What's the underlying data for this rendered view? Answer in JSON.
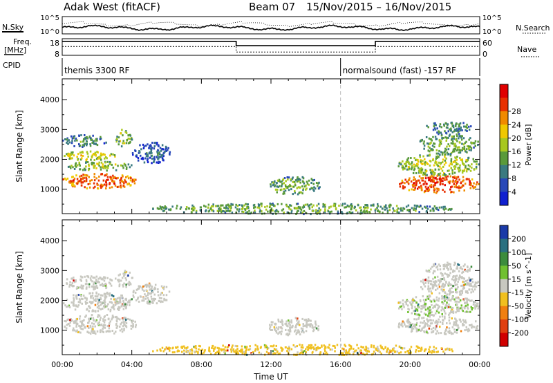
{
  "header": {
    "station": "Adak West (fitACF)",
    "beam": "Beam 07",
    "daterange": "15/Nov/2015 – 16/Nov/2015"
  },
  "top_panels": {
    "nsky_label": "N.Sky",
    "nsky_ticks": [
      "10^5",
      "10^0"
    ],
    "nsearch_label": "N.Search",
    "nsearch_ticks": [
      "10^5",
      "10^0"
    ],
    "freq_label": "Freq.",
    "freq_unit": "[MHz]",
    "freq_ticks": [
      "18",
      "8"
    ],
    "nave_label": "Nave",
    "nave_ticks": [
      "60",
      "0"
    ],
    "cpid_label": "CPID",
    "cpid_segments": [
      {
        "start_hour": 0,
        "text": "themis 3300 RF"
      },
      {
        "start_hour": 16,
        "text": "normalsound (fast) -157 RF"
      }
    ]
  },
  "axes": {
    "ylabel": "Slant Range [km]",
    "xlabel": "Time UT",
    "yticks": [
      "1000",
      "2000",
      "3000",
      "4000"
    ],
    "xticks": [
      "00:00",
      "04:00",
      "08:00",
      "12:00",
      "16:00",
      "20:00",
      "00:00"
    ]
  },
  "power_bar": {
    "label": "Power [dB]",
    "ticks": [
      "4",
      "8",
      "12",
      "16",
      "20",
      "24",
      "28"
    ],
    "colors": [
      "#1020d0",
      "#2848b8",
      "#3a7a80",
      "#5a9a3a",
      "#a8c820",
      "#f0c800",
      "#f08a00",
      "#e83000",
      "#e00000"
    ]
  },
  "velocity_bar": {
    "label": "Velocity [m s^-1]",
    "ticks": [
      "200",
      "100",
      "50",
      "15",
      "-15",
      "-50",
      "-100",
      "-200"
    ],
    "colors": [
      "#1a3aa8",
      "#2a7080",
      "#3c8c3c",
      "#70c030",
      "#c8c8c0",
      "#f0c020",
      "#f08010",
      "#e04010",
      "#d00000"
    ]
  },
  "chart_data": [
    {
      "type": "heatmap",
      "name": "power",
      "xlabel": "Time UT",
      "ylabel": "Slant Range [km]",
      "xlim": [
        0,
        24
      ],
      "ylim": [
        180,
        4700
      ],
      "x_unit": "hours UT",
      "cblim": [
        0,
        32
      ],
      "blobs": [
        {
          "t": [
            0.0,
            4.2
          ],
          "r": [
            1050,
            1550
          ],
          "v": 27
        },
        {
          "t": [
            0.0,
            4.0
          ],
          "r": [
            1650,
            1950
          ],
          "v": 16
        },
        {
          "t": [
            0.0,
            3.0
          ],
          "r": [
            2000,
            2300
          ],
          "v": 19
        },
        {
          "t": [
            0.0,
            2.5
          ],
          "r": [
            2450,
            2850
          ],
          "v": 11
        },
        {
          "t": [
            3.0,
            4.0
          ],
          "r": [
            2450,
            3050
          ],
          "v": 16
        },
        {
          "t": [
            4.0,
            6.2
          ],
          "r": [
            1900,
            2600
          ],
          "v": 8
        },
        {
          "t": [
            11.8,
            14.8
          ],
          "r": [
            850,
            1450
          ],
          "v": 14
        },
        {
          "t": [
            5.0,
            22.5
          ],
          "r": [
            200,
            550
          ],
          "v": 14
        },
        {
          "t": [
            19.2,
            23.9
          ],
          "r": [
            900,
            1500
          ],
          "v": 28
        },
        {
          "t": [
            19.2,
            23.9
          ],
          "r": [
            1500,
            2200
          ],
          "v": 17
        },
        {
          "t": [
            20.5,
            23.9
          ],
          "r": [
            2200,
            2900
          ],
          "v": 14
        },
        {
          "t": [
            20.8,
            23.5
          ],
          "r": [
            2900,
            3300
          ],
          "v": 11
        }
      ]
    },
    {
      "type": "heatmap",
      "name": "velocity",
      "xlabel": "Time UT",
      "ylabel": "Slant Range [km]",
      "xlim": [
        0,
        24
      ],
      "ylim": [
        180,
        4700
      ],
      "x_unit": "hours UT",
      "cblim": [
        -250,
        250
      ],
      "blobs": [
        {
          "t": [
            0.0,
            4.2
          ],
          "r": [
            900,
            1550
          ],
          "v": 0
        },
        {
          "t": [
            0.0,
            4.0
          ],
          "r": [
            1650,
            2300
          ],
          "v": 0
        },
        {
          "t": [
            0.0,
            3.0
          ],
          "r": [
            2400,
            2850
          ],
          "v": 0
        },
        {
          "t": [
            3.0,
            4.0
          ],
          "r": [
            2450,
            3050
          ],
          "v": 0
        },
        {
          "t": [
            4.0,
            6.2
          ],
          "r": [
            1900,
            2600
          ],
          "v": 0
        },
        {
          "t": [
            11.8,
            14.8
          ],
          "r": [
            850,
            1450
          ],
          "v": 0
        },
        {
          "t": [
            5.0,
            22.5
          ],
          "r": [
            200,
            550
          ],
          "v": -40
        },
        {
          "t": [
            19.2,
            23.9
          ],
          "r": [
            900,
            1500
          ],
          "v": 0
        },
        {
          "t": [
            19.2,
            23.9
          ],
          "r": [
            1500,
            2200
          ],
          "v": 20
        },
        {
          "t": [
            20.5,
            23.9
          ],
          "r": [
            2200,
            2900
          ],
          "v": 0
        },
        {
          "t": [
            20.8,
            23.5
          ],
          "r": [
            2900,
            3300
          ],
          "v": 0
        }
      ]
    },
    {
      "type": "line",
      "name": "frequency",
      "unit": "MHz",
      "ylim": [
        8,
        18
      ],
      "x": [
        0,
        10,
        18,
        24
      ],
      "values": [
        16.4,
        13.8,
        16.4,
        16.4
      ]
    },
    {
      "type": "line",
      "name": "nave",
      "ylim": [
        0,
        60
      ],
      "x": [
        0,
        10,
        18,
        24
      ],
      "values": [
        32,
        12,
        32,
        32
      ]
    }
  ]
}
